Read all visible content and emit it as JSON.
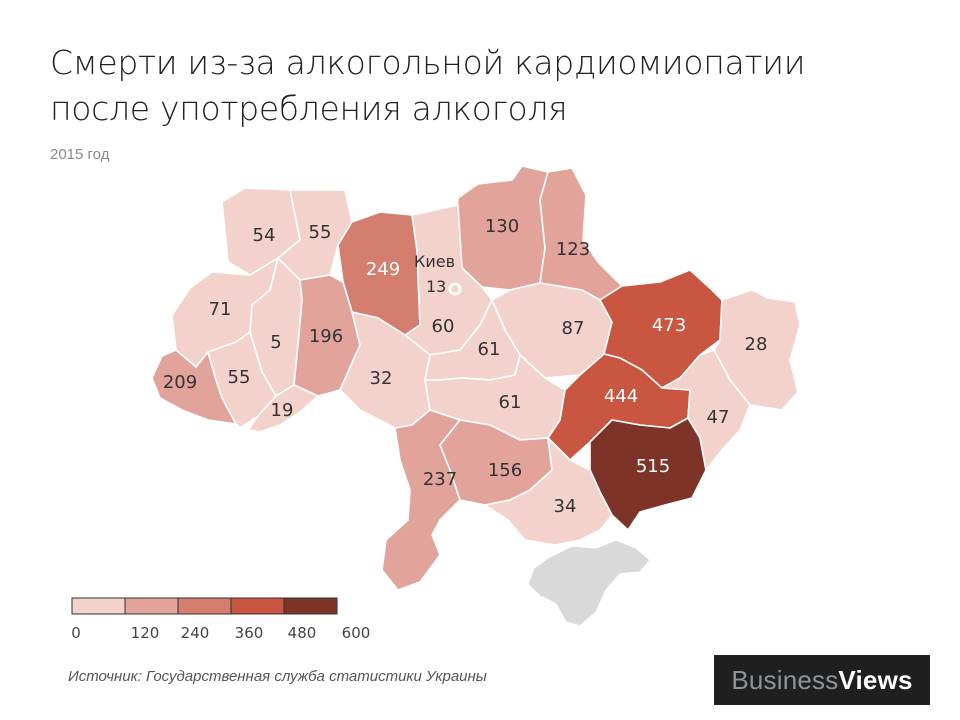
{
  "title_line1": "Смерти из-за алкогольной кардиомиопатии",
  "title_line2": "после употребления алкоголя",
  "subtitle": "2015 год",
  "source": "Источник: Государственная служба статистики Украины",
  "brand": {
    "part1": "Business",
    "part2": "Views"
  },
  "city": {
    "name": "Киев",
    "value": 13
  },
  "regions": [
    {
      "id": "volyn",
      "value": 54
    },
    {
      "id": "rivne",
      "value": 55
    },
    {
      "id": "zhytomyr",
      "value": 249
    },
    {
      "id": "chernihiv",
      "value": 130
    },
    {
      "id": "sumy",
      "value": 123
    },
    {
      "id": "lviv",
      "value": 71
    },
    {
      "id": "ternopil",
      "value": 5
    },
    {
      "id": "khmelnytskyi",
      "value": 196
    },
    {
      "id": "kyiv-oblast",
      "value": 60
    },
    {
      "id": "poltava",
      "value": 87
    },
    {
      "id": "kharkiv",
      "value": 473
    },
    {
      "id": "luhansk",
      "value": 28
    },
    {
      "id": "zakarpattia",
      "value": 209
    },
    {
      "id": "ivano-frankivsk",
      "value": 55
    },
    {
      "id": "chernivtsi",
      "value": 19
    },
    {
      "id": "vinnytsia",
      "value": 32
    },
    {
      "id": "cherkasy",
      "value": 61
    },
    {
      "id": "kirovohrad",
      "value": 61
    },
    {
      "id": "dnipropetrovsk",
      "value": 444
    },
    {
      "id": "donetsk",
      "value": 515
    },
    {
      "id": "zaporizhzhia",
      "value": 47
    },
    {
      "id": "odesa",
      "value": 237
    },
    {
      "id": "mykolaiv",
      "value": 156
    },
    {
      "id": "kherson",
      "value": 34
    }
  ],
  "legend": {
    "ticks": [
      "0",
      "120",
      "240",
      "360",
      "480",
      "600"
    ],
    "colors": [
      "#f2d2cb",
      "#e1a39a",
      "#d47e6f",
      "#c95640",
      "#7d3328"
    ]
  }
}
